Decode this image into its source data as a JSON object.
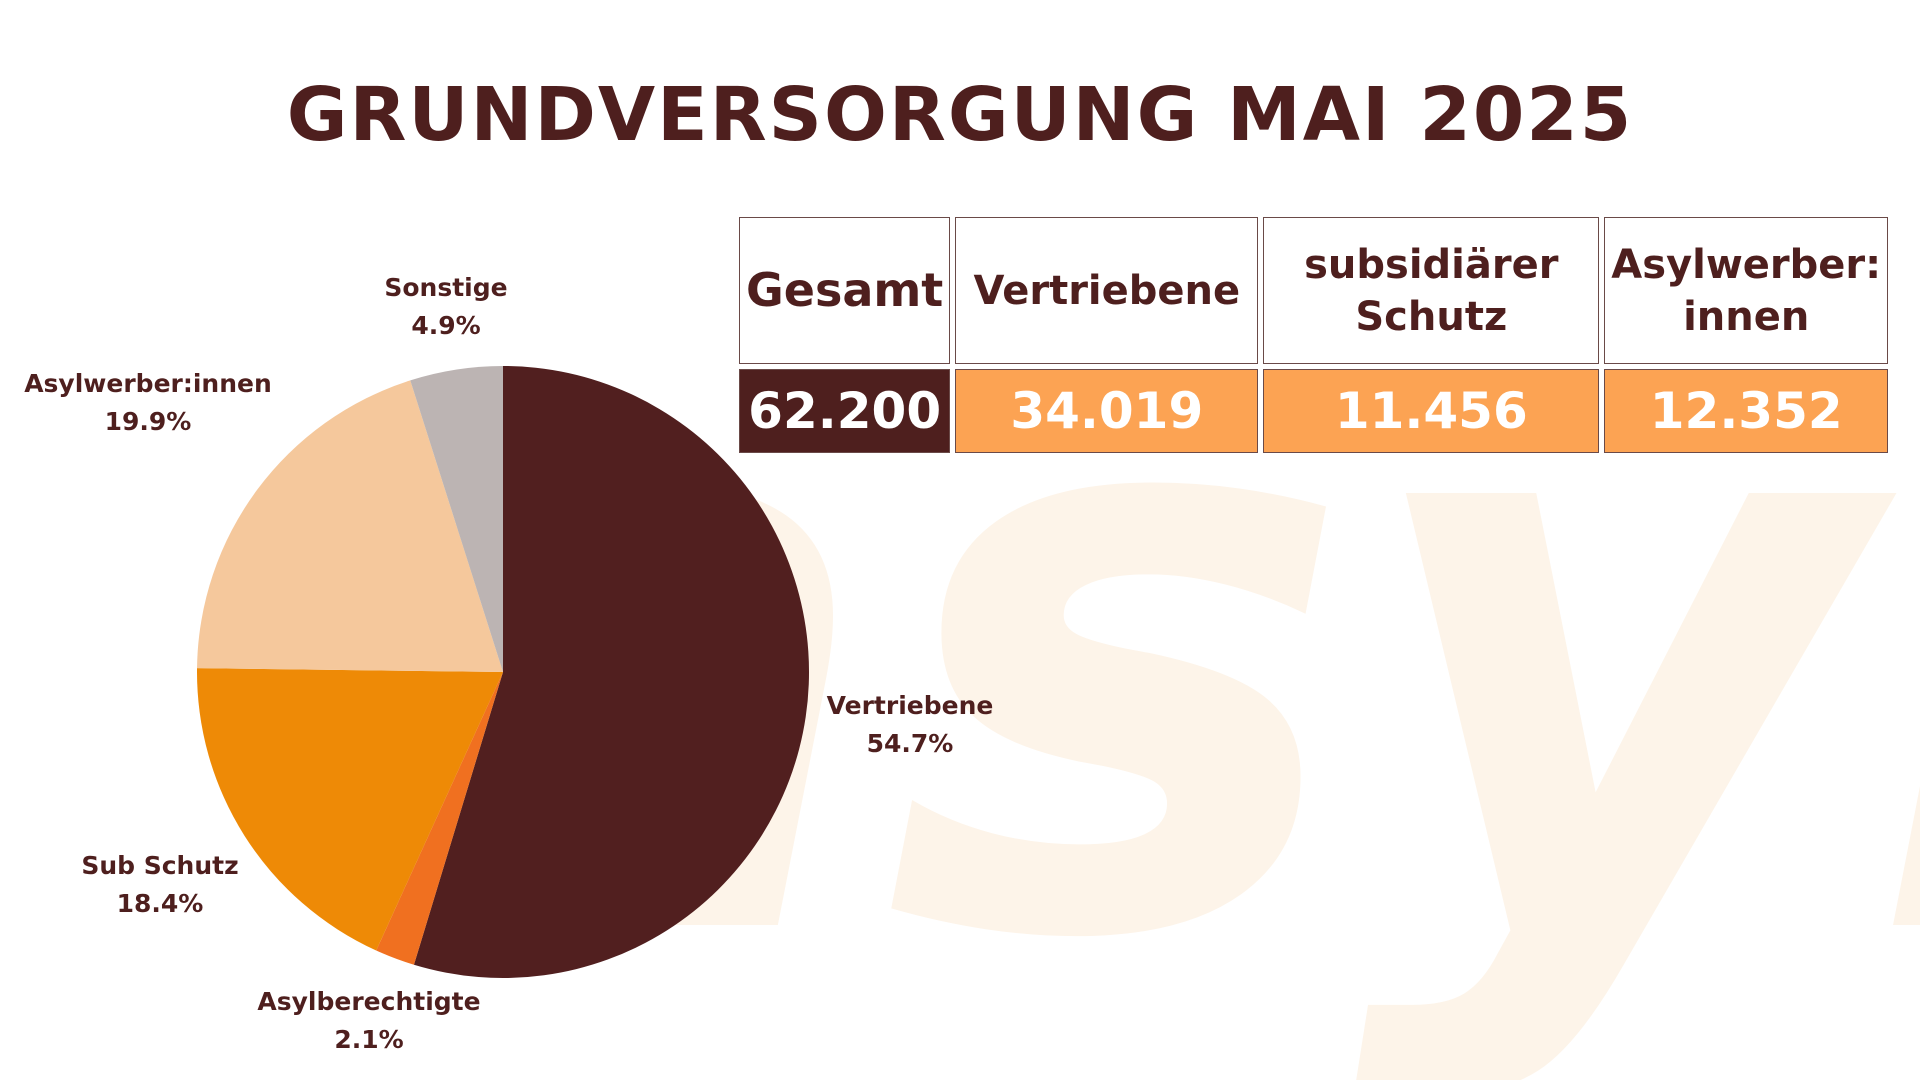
{
  "watermark": "asyl",
  "title": "GRUNDVERSORGUNG MAI 2025",
  "table": {
    "headers": [
      {
        "lines": [
          "Gesamt"
        ]
      },
      {
        "lines": [
          "Vertriebene"
        ]
      },
      {
        "lines": [
          "subsidiärer",
          "Schutz"
        ]
      },
      {
        "lines": [
          "Asylwerber:",
          "innen"
        ]
      }
    ],
    "values": [
      "62.200",
      "34.019",
      "11.456",
      "12.352"
    ]
  },
  "colors": {
    "dark_brown": "#4e1f1e",
    "orange_cell": "#fca353",
    "watermark": "#fdf4e9"
  },
  "chart_data": {
    "type": "pie",
    "slices": [
      {
        "label": "Vertriebene",
        "value": 54.7,
        "value_label": "54.7%",
        "color": "#511f1f"
      },
      {
        "label": "Asylberechtigte",
        "value": 2.1,
        "value_label": "2.1%",
        "color": "#f07020"
      },
      {
        "label": "Sub Schutz",
        "value": 18.4,
        "value_label": "18.4%",
        "color": "#ee8a06"
      },
      {
        "label": "Asylwerber:innen",
        "value": 19.9,
        "value_label": "19.9%",
        "color": "#f5c89c"
      },
      {
        "label": "Sonstige",
        "value": 4.9,
        "value_label": "4.9%",
        "color": "#bcb4b3"
      }
    ]
  }
}
